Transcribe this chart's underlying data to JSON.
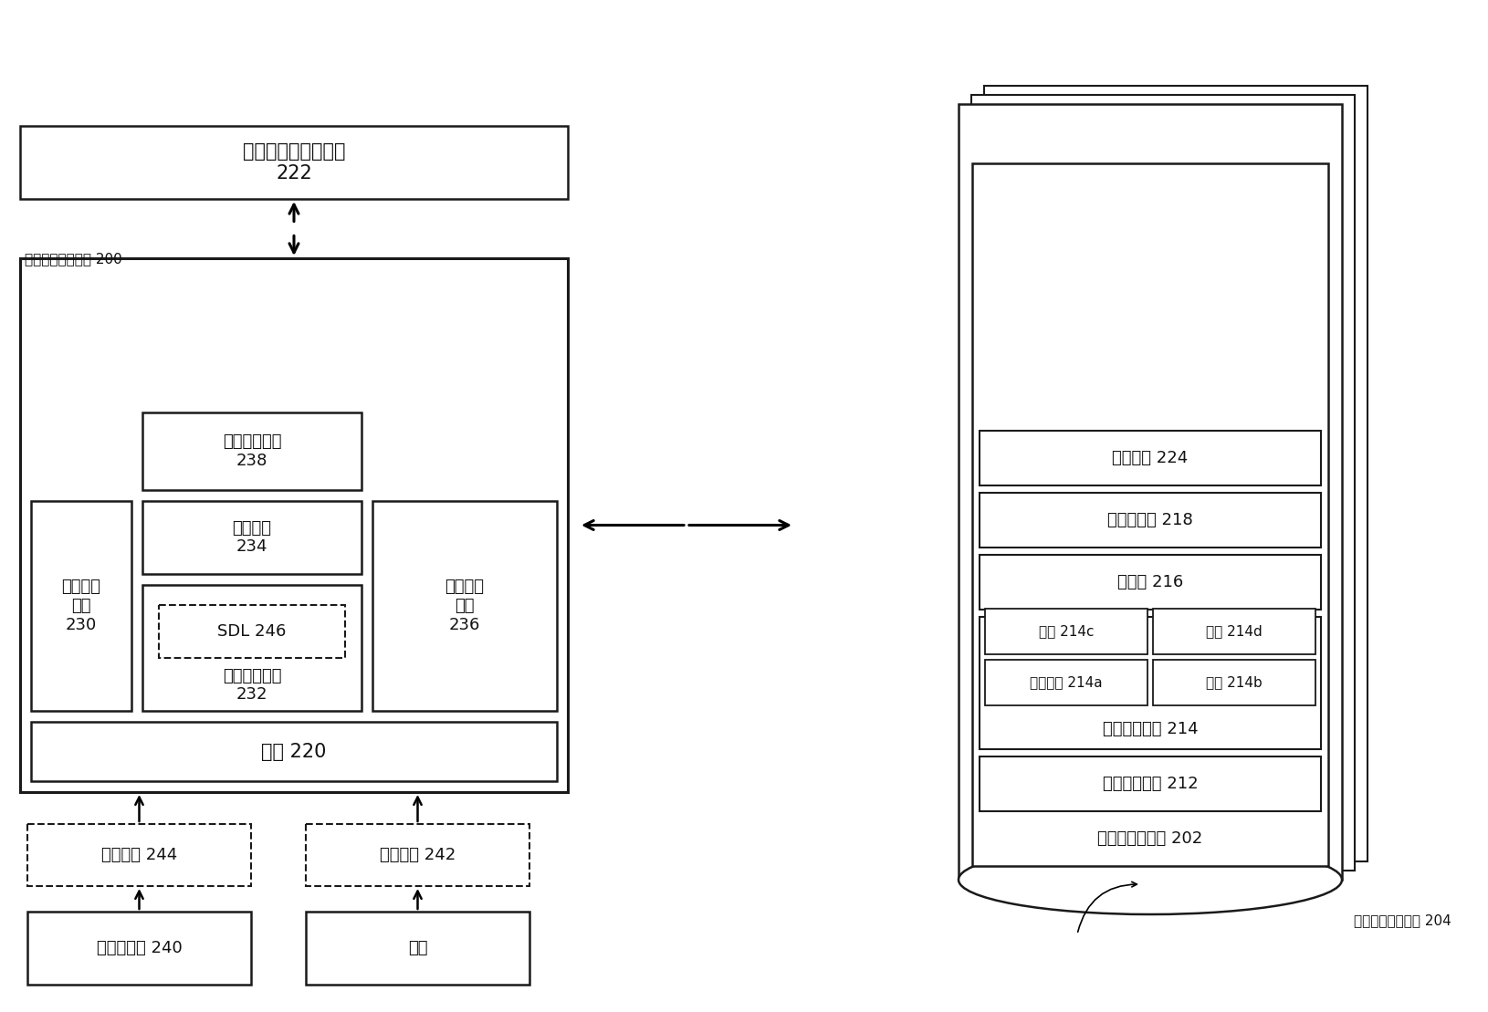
{
  "bg_color": "#ffffff",
  "edge_color": "#1a1a1a",
  "font_size_large": 15,
  "font_size_med": 13,
  "font_size_small": 11,
  "labels": {
    "patient_source": "患者数据源 240",
    "user": "用户",
    "doc_file": "文档文件 244",
    "med_data": "医疗数据 242",
    "portal": "门户 220",
    "data_collect": "数据收集\n模块\n230",
    "extract_module": "数据提取模块\n232",
    "sdl": "SDL 246",
    "enrich_module": "丰富模块\n234",
    "data_access": "数据访问\n模块\n236",
    "data_coord": "数据协调模块\n238",
    "system_label": "医疗数据处理系统 200",
    "oncology_app": "肿瘤学工作流程应用\n222",
    "db_label": "统一的患者数据库 204",
    "struct_data": "结构化患者数据 202",
    "patient_bio": "患者传记信息 212",
    "tumor_diag": "肿瘤诊断信息 214",
    "tumor_site": "肿瘤部位 214a",
    "staging": "分期 214b",
    "pathology": "病理 214c",
    "diagnosis": "诊断 214d",
    "treatment": "治疗史 216",
    "biomarker": "生物标志物 218",
    "analysis": "分析结果 224"
  }
}
